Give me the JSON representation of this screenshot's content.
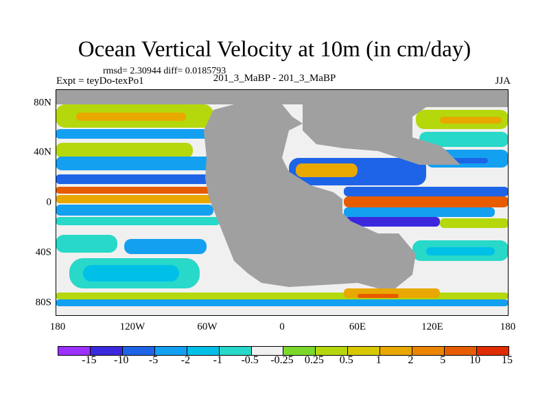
{
  "title": "Ocean Vertical Velocity at 10m (in cm/day)",
  "stats": "rmsd= 2.30944 diff= 0.0185793",
  "experiment": "Expt = teyDo-texPo1",
  "comparison": "201_3_MaBP - 201_3_MaBP",
  "season": "JJA",
  "map": {
    "land_color": "#a0a0a0",
    "y_ticks": [
      "80N",
      "40N",
      "0",
      "40S",
      "80S"
    ],
    "x_ticks": [
      "180",
      "120W",
      "60W",
      "0",
      "60E",
      "120E",
      "180"
    ]
  },
  "colorbar": {
    "colors": [
      "#9b30ff",
      "#3c28dc",
      "#1e64e6",
      "#14a0f0",
      "#00c0e8",
      "#28d8c8",
      "#f0f0f0",
      "#7cd82c",
      "#b4d80c",
      "#d8c800",
      "#e8a800",
      "#ec8400",
      "#e85c00",
      "#e02c00"
    ],
    "labels": [
      "-15",
      "-10",
      "-5",
      "-2",
      "-1",
      "-0.5",
      "-0.25",
      "0.25",
      "0.5",
      "1",
      "2",
      "5",
      "10",
      "15"
    ]
  }
}
